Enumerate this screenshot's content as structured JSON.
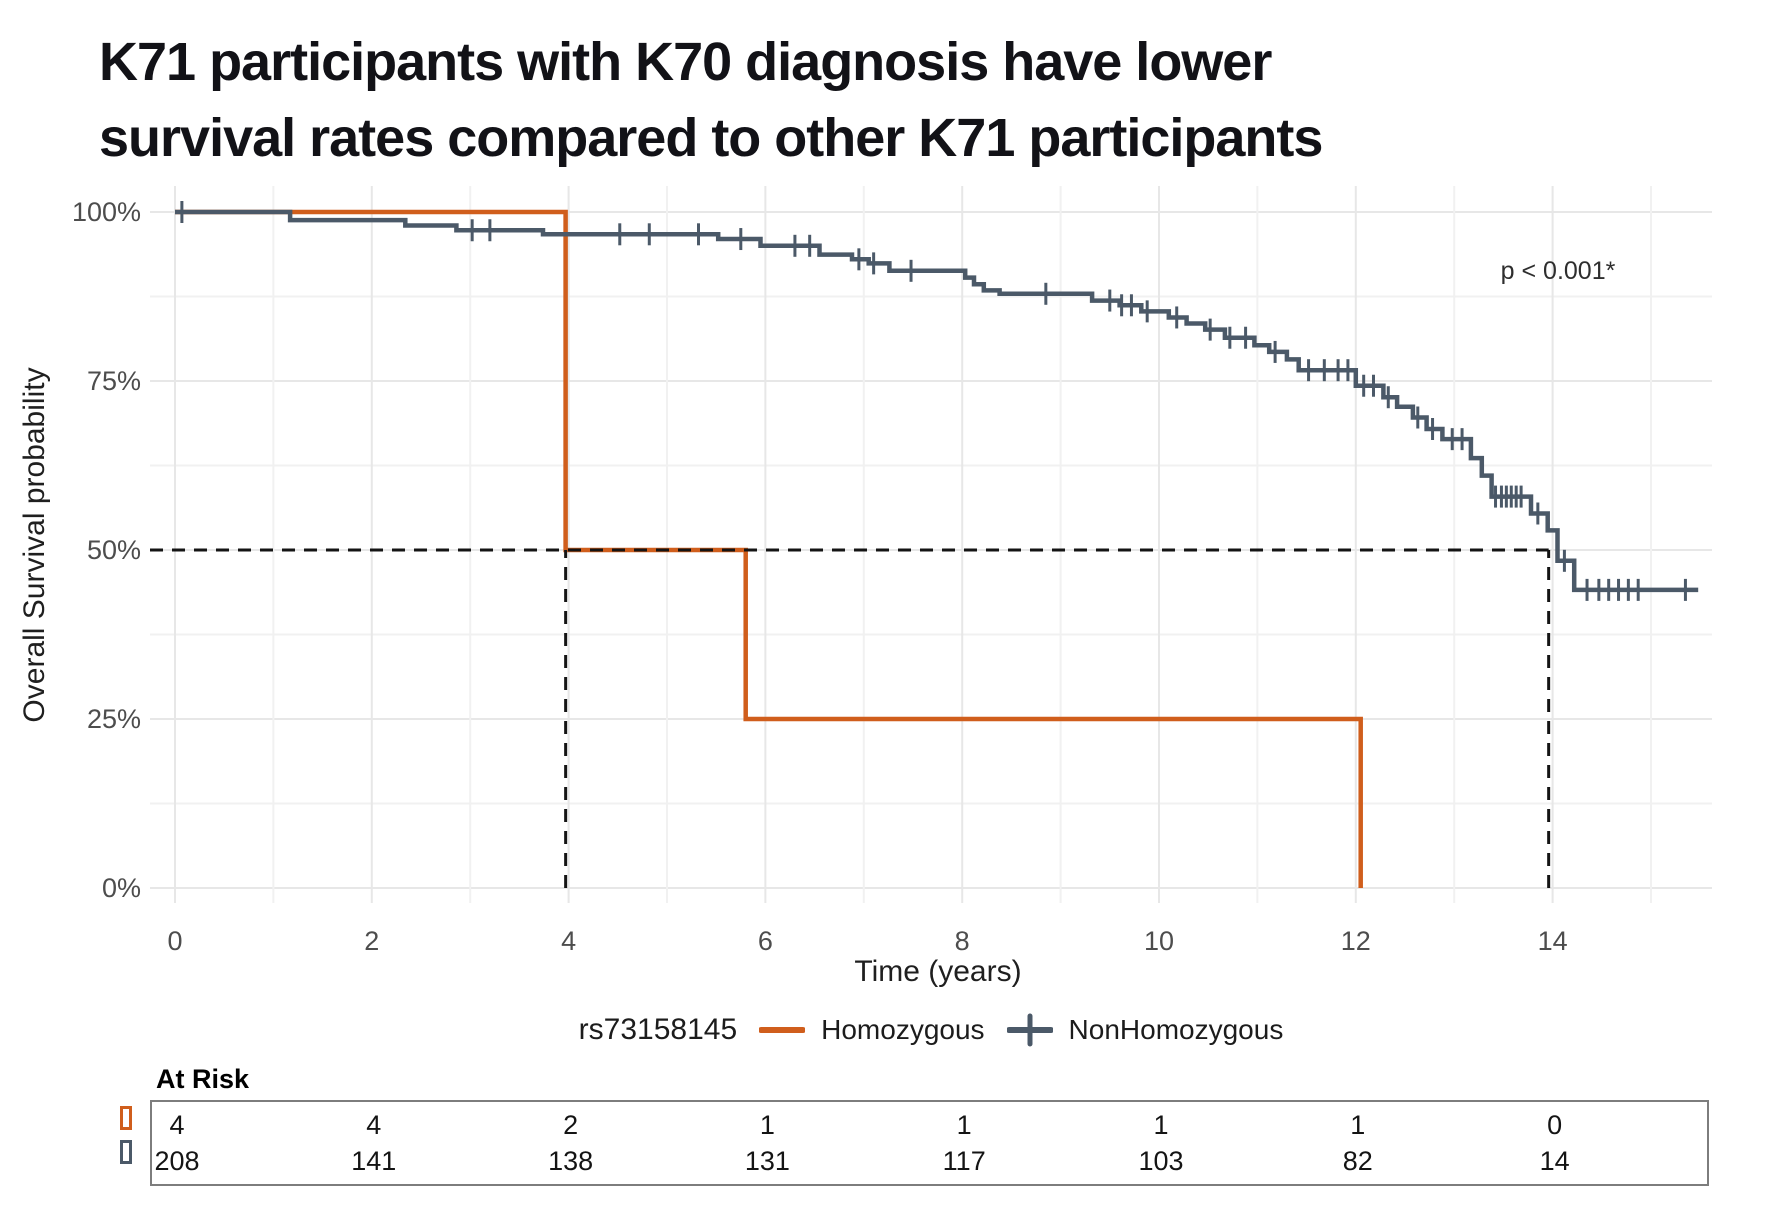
{
  "header": {
    "title_line1": "K71 participants with K70 diagnosis have lower",
    "title_line2": "survival rates compared to other K71 participants"
  },
  "colors": {
    "homozygous": "#d05e1c",
    "non_homozygous": "#4b5968",
    "grid_major": "#e7e7e7",
    "grid_minor": "#f1f1f1",
    "dashed_line": "#141414",
    "tick_label": "#4d4d4d",
    "axis_title": "#1f1f1f",
    "annotation": "#2e2e2e",
    "table_border": "#7d7d7d"
  },
  "chart_data": {
    "type": "line",
    "subtype": "kaplan-meier-step",
    "title": "K71 participants with K70 diagnosis have lower survival rates compared to other K71 participants",
    "xlabel": "Time (years)",
    "ylabel": "Overall Survival probability",
    "xlim": [
      0,
      15.6
    ],
    "ylim": [
      0,
      100
    ],
    "x_ticks": [
      0,
      2,
      4,
      6,
      8,
      10,
      12,
      14
    ],
    "y_ticks": [
      {
        "v": 0,
        "label": "0%"
      },
      {
        "v": 25,
        "label": "25%"
      },
      {
        "v": 50,
        "label": "50%"
      },
      {
        "v": 75,
        "label": "75%"
      },
      {
        "v": 100,
        "label": "100%"
      }
    ],
    "grid": "on",
    "annotation": "p < 0.001*",
    "legend_title": "rs73158145",
    "legend_position": "bottom",
    "median_reference": {
      "y_pct": 50,
      "median_x": [
        3.97,
        13.96
      ]
    },
    "series": [
      {
        "name": "Homozygous",
        "steps": [
          [
            0,
            100
          ],
          [
            3.97,
            100
          ],
          [
            3.97,
            50
          ],
          [
            5.8,
            50
          ],
          [
            5.8,
            25
          ],
          [
            12.05,
            25
          ],
          [
            12.05,
            0
          ]
        ],
        "censors": []
      },
      {
        "name": "NonHomozygous",
        "steps": [
          [
            0,
            100
          ],
          [
            1.17,
            98.8
          ],
          [
            2.34,
            98.0
          ],
          [
            2.86,
            97.3
          ],
          [
            3.74,
            96.7
          ],
          [
            5.52,
            96.0
          ],
          [
            5.95,
            95.0
          ],
          [
            6.55,
            93.7
          ],
          [
            6.88,
            93.0
          ],
          [
            7.05,
            92.4
          ],
          [
            7.26,
            91.3
          ],
          [
            8.03,
            90.3
          ],
          [
            8.12,
            89.3
          ],
          [
            8.22,
            88.4
          ],
          [
            8.38,
            87.9
          ],
          [
            9.32,
            86.9
          ],
          [
            9.6,
            86.2
          ],
          [
            9.82,
            85.3
          ],
          [
            10.1,
            84.4
          ],
          [
            10.28,
            83.5
          ],
          [
            10.47,
            82.6
          ],
          [
            10.67,
            81.4
          ],
          [
            10.97,
            80.3
          ],
          [
            11.12,
            79.3
          ],
          [
            11.3,
            78.2
          ],
          [
            11.42,
            76.6
          ],
          [
            12.0,
            74.3
          ],
          [
            12.28,
            72.6
          ],
          [
            12.42,
            71.2
          ],
          [
            12.58,
            69.6
          ],
          [
            12.72,
            67.9
          ],
          [
            12.88,
            66.4
          ],
          [
            13.17,
            63.6
          ],
          [
            13.28,
            61.0
          ],
          [
            13.38,
            57.9
          ],
          [
            13.78,
            55.4
          ],
          [
            13.95,
            52.9
          ],
          [
            14.05,
            48.4
          ],
          [
            14.22,
            44.1
          ],
          [
            15.48,
            44.1
          ]
        ],
        "censors": [
          [
            0.07,
            100
          ],
          [
            3.02,
            97.3
          ],
          [
            3.2,
            97.3
          ],
          [
            4.52,
            96.7
          ],
          [
            4.82,
            96.7
          ],
          [
            5.32,
            96.7
          ],
          [
            5.75,
            96.0
          ],
          [
            6.3,
            95.0
          ],
          [
            6.45,
            95.0
          ],
          [
            6.95,
            93.0
          ],
          [
            7.1,
            92.4
          ],
          [
            7.48,
            91.3
          ],
          [
            8.85,
            87.9
          ],
          [
            9.5,
            86.9
          ],
          [
            9.62,
            86.2
          ],
          [
            9.72,
            86.2
          ],
          [
            9.88,
            85.3
          ],
          [
            10.18,
            84.4
          ],
          [
            10.52,
            82.6
          ],
          [
            10.72,
            81.4
          ],
          [
            10.88,
            81.4
          ],
          [
            11.18,
            79.3
          ],
          [
            11.52,
            76.6
          ],
          [
            11.68,
            76.6
          ],
          [
            11.82,
            76.6
          ],
          [
            11.92,
            76.6
          ],
          [
            12.08,
            74.3
          ],
          [
            12.18,
            74.3
          ],
          [
            12.33,
            72.6
          ],
          [
            12.63,
            69.6
          ],
          [
            12.78,
            67.9
          ],
          [
            12.98,
            66.4
          ],
          [
            13.08,
            66.4
          ],
          [
            13.42,
            57.9
          ],
          [
            13.48,
            57.9
          ],
          [
            13.53,
            57.9
          ],
          [
            13.58,
            57.9
          ],
          [
            13.63,
            57.9
          ],
          [
            13.68,
            57.9
          ],
          [
            13.85,
            55.4
          ],
          [
            14.12,
            48.4
          ],
          [
            14.35,
            44.1
          ],
          [
            14.47,
            44.1
          ],
          [
            14.57,
            44.1
          ],
          [
            14.67,
            44.1
          ],
          [
            14.77,
            44.1
          ],
          [
            14.87,
            44.1
          ],
          [
            15.35,
            44.1
          ]
        ]
      }
    ]
  },
  "at_risk": {
    "label": "At Risk",
    "times": [
      0,
      2,
      4,
      6,
      8,
      10,
      12,
      14
    ],
    "rows": [
      {
        "name": "Homozygous",
        "values": [
          "4",
          "4",
          "2",
          "1",
          "1",
          "1",
          "1",
          "0"
        ]
      },
      {
        "name": "NonHomozygous",
        "values": [
          "208",
          "141",
          "138",
          "131",
          "117",
          "103",
          "82",
          "14"
        ]
      }
    ]
  }
}
